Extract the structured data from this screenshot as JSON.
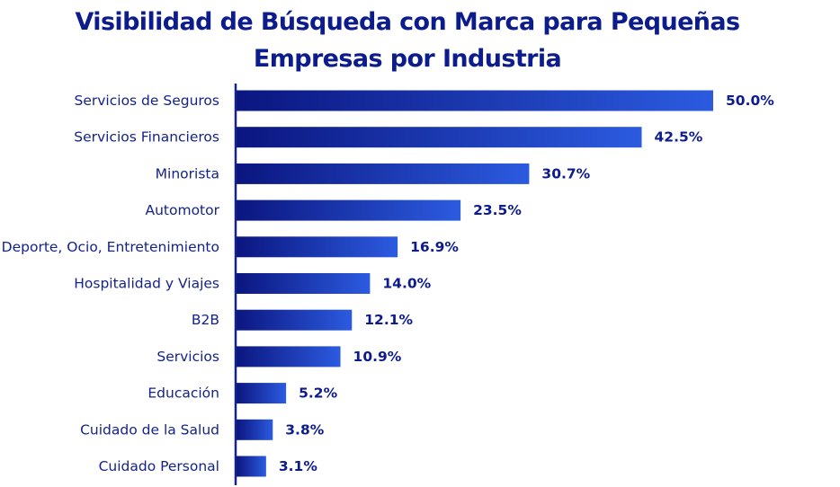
{
  "title_lines": [
    "Visibilidad de Búsqueda con Marca para Pequeñas",
    "Empresas por Industria"
  ],
  "colors": {
    "bar_start": "#0b1680",
    "bar_end": "#2c5be0",
    "axis": "#14238a",
    "text": "#0d1c8c"
  },
  "chart_data": {
    "type": "bar",
    "orientation": "horizontal",
    "title": "Visibilidad de Búsqueda con Marca para Pequeñas Empresas por Industria",
    "categories": [
      "Servicios de Seguros",
      "Servicios Financieros",
      "Minorista",
      "Automotor",
      "Deporte, Ocio, Entretenimiento",
      "Hospitalidad y Viajes",
      "B2B",
      "Servicios",
      "Educación",
      "Cuidado de la Salud",
      "Cuidado Personal"
    ],
    "values": [
      50.0,
      42.5,
      30.7,
      23.5,
      16.9,
      14.0,
      12.1,
      10.9,
      5.2,
      3.8,
      3.1
    ],
    "value_labels": [
      "50.0%",
      "42.5%",
      "30.7%",
      "23.5%",
      "16.9%",
      "14.0%",
      "12.1%",
      "10.9%",
      "5.2%",
      "3.8%",
      "3.1%"
    ],
    "unit": "%",
    "xlim": [
      0,
      50
    ],
    "xlabel": "",
    "ylabel": "",
    "grid": false,
    "legend": "none"
  }
}
